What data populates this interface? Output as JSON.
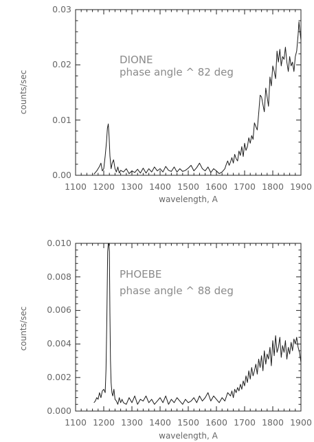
{
  "chart_data": [
    {
      "type": "line",
      "title": "",
      "xlabel": "wavelength, A",
      "ylabel": "counts/sec",
      "xlim": [
        1100,
        1900
      ],
      "ylim": [
        0,
        0.03
      ],
      "x_ticks": [
        1100,
        1200,
        1300,
        1400,
        1500,
        1600,
        1700,
        1800,
        1900
      ],
      "x_tick_labels": [
        "1100",
        "1200",
        "1300",
        "1400",
        "1500",
        "1600",
        "1700",
        "1800",
        "1900"
      ],
      "y_ticks": [
        0,
        0.01,
        0.02,
        0.03
      ],
      "y_tick_labels": [
        "0.00",
        "0.01",
        "0.02",
        "0.03"
      ],
      "annotations": [
        "DIONE",
        "phase angle ^ 82 deg"
      ],
      "grid": false,
      "series": [
        {
          "x": [
            1165,
            1175,
            1185,
            1190,
            1195,
            1200,
            1205,
            1210,
            1213,
            1216,
            1219,
            1222,
            1226,
            1230,
            1235,
            1240,
            1245,
            1250,
            1255,
            1260,
            1270,
            1280,
            1290,
            1300,
            1310,
            1320,
            1330,
            1340,
            1350,
            1360,
            1370,
            1380,
            1390,
            1400,
            1410,
            1420,
            1430,
            1440,
            1450,
            1460,
            1470,
            1480,
            1490,
            1500,
            1510,
            1520,
            1530,
            1540,
            1550,
            1560,
            1570,
            1580,
            1590,
            1600,
            1610,
            1620,
            1630,
            1635,
            1640,
            1645,
            1650,
            1655,
            1660,
            1665,
            1670,
            1675,
            1680,
            1685,
            1690,
            1695,
            1700,
            1705,
            1710,
            1715,
            1720,
            1725,
            1730,
            1735,
            1740,
            1745,
            1750,
            1755,
            1760,
            1765,
            1770,
            1775,
            1780,
            1785,
            1790,
            1795,
            1800,
            1805,
            1810,
            1815,
            1820,
            1825,
            1830,
            1835,
            1840,
            1845,
            1850,
            1855,
            1860,
            1865,
            1870,
            1875,
            1880,
            1885,
            1890,
            1893,
            1896,
            1900
          ],
          "y": [
            0.0002,
            0.0008,
            0.0016,
            0.0022,
            0.0008,
            0.0012,
            0.0035,
            0.0062,
            0.0085,
            0.0093,
            0.007,
            0.0035,
            0.0012,
            0.0022,
            0.0028,
            0.0012,
            0.0006,
            0.0015,
            0.0004,
            0.0009,
            0.0006,
            0.0012,
            0.0003,
            0.0008,
            0.0005,
            0.0011,
            0.0004,
            0.0013,
            0.0004,
            0.0012,
            0.0006,
            0.0015,
            0.0008,
            0.0012,
            0.0006,
            0.0016,
            0.0009,
            0.0007,
            0.0015,
            0.0006,
            0.0012,
            0.0007,
            0.0009,
            0.0013,
            0.0018,
            0.0008,
            0.0014,
            0.0022,
            0.0012,
            0.0008,
            0.0015,
            0.0005,
            0.0012,
            0.0008,
            0.0003,
            0.0006,
            0.0012,
            0.002,
            0.0026,
            0.0018,
            0.0024,
            0.0032,
            0.0022,
            0.0038,
            0.003,
            0.0026,
            0.0044,
            0.0036,
            0.0052,
            0.0034,
            0.0058,
            0.0045,
            0.0052,
            0.0068,
            0.0058,
            0.0072,
            0.0065,
            0.0095,
            0.0088,
            0.0082,
            0.0112,
            0.0145,
            0.0142,
            0.0128,
            0.0115,
            0.0158,
            0.0142,
            0.0125,
            0.0178,
            0.0162,
            0.0198,
            0.0188,
            0.0175,
            0.0225,
            0.0205,
            0.0228,
            0.0198,
            0.0215,
            0.021,
            0.0232,
            0.0205,
            0.0188,
            0.0215,
            0.0198,
            0.0205,
            0.0188,
            0.0215,
            0.0225,
            0.0255,
            0.0278,
            0.0262,
            0.0245
          ]
        }
      ]
    },
    {
      "type": "line",
      "title": "",
      "xlabel": "wavelength, A",
      "ylabel": "counts/sec",
      "xlim": [
        1100,
        1900
      ],
      "ylim": [
        0,
        0.01
      ],
      "x_ticks": [
        1100,
        1200,
        1300,
        1400,
        1500,
        1600,
        1700,
        1800,
        1900
      ],
      "x_tick_labels": [
        "1100",
        "1200",
        "1300",
        "1400",
        "1500",
        "1600",
        "1700",
        "1800",
        "1900"
      ],
      "y_ticks": [
        0,
        0.002,
        0.004,
        0.006,
        0.008,
        0.01
      ],
      "y_tick_labels": [
        "0.000",
        "0.002",
        "0.004",
        "0.006",
        "0.008",
        "0.010"
      ],
      "annotations": [
        "PHOEBE",
        "phase angle ^ 88 deg"
      ],
      "grid": false,
      "series": [
        {
          "x": [
            1165,
            1170,
            1175,
            1180,
            1185,
            1190,
            1195,
            1200,
            1205,
            1208,
            1211,
            1214,
            1216,
            1218,
            1220,
            1222,
            1224,
            1226,
            1229,
            1232,
            1236,
            1240,
            1245,
            1250,
            1255,
            1260,
            1265,
            1270,
            1280,
            1290,
            1300,
            1310,
            1320,
            1330,
            1340,
            1350,
            1360,
            1370,
            1380,
            1390,
            1400,
            1410,
            1420,
            1430,
            1440,
            1450,
            1460,
            1470,
            1480,
            1490,
            1500,
            1510,
            1520,
            1530,
            1540,
            1550,
            1560,
            1570,
            1580,
            1590,
            1600,
            1610,
            1620,
            1630,
            1640,
            1650,
            1655,
            1660,
            1665,
            1670,
            1675,
            1680,
            1685,
            1690,
            1695,
            1700,
            1705,
            1710,
            1715,
            1720,
            1725,
            1730,
            1735,
            1740,
            1745,
            1750,
            1755,
            1760,
            1765,
            1770,
            1775,
            1780,
            1785,
            1790,
            1795,
            1800,
            1805,
            1810,
            1815,
            1820,
            1825,
            1830,
            1835,
            1840,
            1845,
            1850,
            1855,
            1860,
            1865,
            1870,
            1875,
            1880,
            1885,
            1890,
            1895,
            1900
          ],
          "y": [
            0.0005,
            0.0006,
            0.0008,
            0.0007,
            0.0011,
            0.0008,
            0.0012,
            0.0013,
            0.0011,
            0.0025,
            0.0055,
            0.0095,
            0.0105,
            0.0105,
            0.0095,
            0.0058,
            0.003,
            0.0017,
            0.0011,
            0.0009,
            0.0013,
            0.0007,
            0.0006,
            0.0004,
            0.0008,
            0.0005,
            0.0007,
            0.0005,
            0.0004,
            0.0008,
            0.0005,
            0.0009,
            0.0004,
            0.0007,
            0.0006,
            0.0009,
            0.0005,
            0.0007,
            0.0004,
            0.0006,
            0.0008,
            0.0005,
            0.0009,
            0.0004,
            0.0007,
            0.0005,
            0.0008,
            0.0006,
            0.0004,
            0.0007,
            0.0005,
            0.0006,
            0.0008,
            0.0005,
            0.0009,
            0.0006,
            0.0008,
            0.0011,
            0.0006,
            0.0009,
            0.0007,
            0.0005,
            0.0008,
            0.0006,
            0.0011,
            0.0009,
            0.0012,
            0.0008,
            0.0013,
            0.0011,
            0.0014,
            0.0012,
            0.0016,
            0.0013,
            0.0018,
            0.0015,
            0.0021,
            0.0017,
            0.0024,
            0.0019,
            0.0026,
            0.0021,
            0.0024,
            0.0028,
            0.0022,
            0.0031,
            0.0026,
            0.0033,
            0.0024,
            0.0036,
            0.0028,
            0.0034,
            0.0031,
            0.0038,
            0.0027,
            0.0042,
            0.0033,
            0.0045,
            0.0035,
            0.0038,
            0.0044,
            0.0032,
            0.0039,
            0.0035,
            0.0042,
            0.0031,
            0.0038,
            0.0034,
            0.0041,
            0.0036,
            0.0043,
            0.004,
            0.0044,
            0.0038,
            0.0035,
            0.0029
          ]
        }
      ]
    }
  ]
}
